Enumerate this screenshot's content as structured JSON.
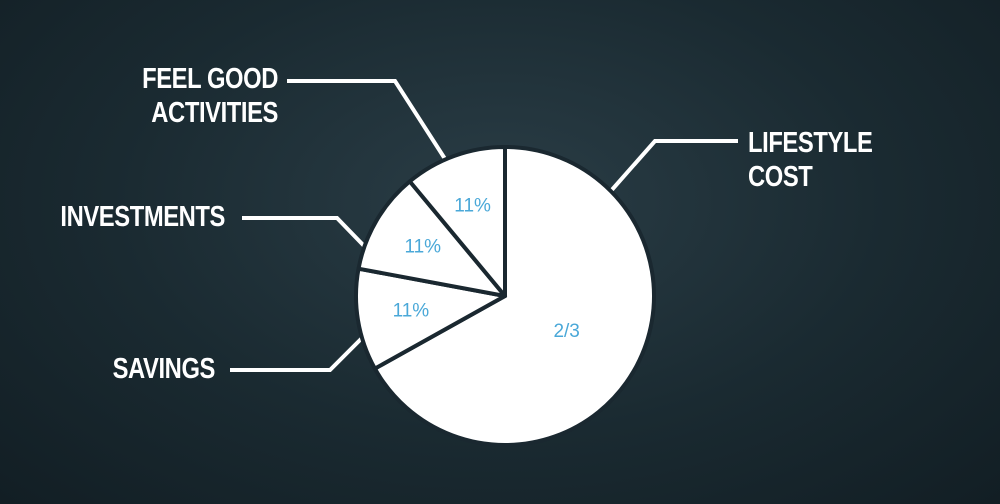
{
  "chart_data": {
    "type": "pie",
    "categories": [
      "LIFESTYLE COST",
      "SAVINGS",
      "INVESTMENTS",
      "FEEL GOOD ACTIVITIES"
    ],
    "values": [
      66.7,
      11,
      11,
      11
    ],
    "value_labels": [
      "2/3",
      "11%",
      "11%",
      "11%"
    ],
    "color": "#ffffff",
    "label_color": "#4aa8d8"
  }
}
